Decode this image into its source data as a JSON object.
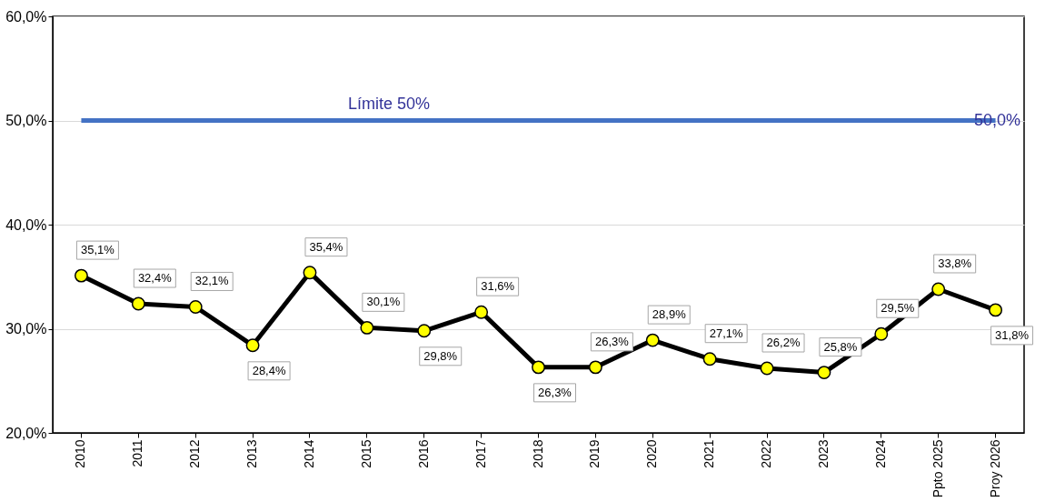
{
  "chart_data": {
    "type": "line",
    "categories": [
      "2010",
      "2011",
      "2012",
      "2013",
      "2014",
      "2015",
      "2016",
      "2017",
      "2018",
      "2019",
      "2020",
      "2021",
      "2022",
      "2023",
      "2024",
      "Ppto 2025",
      "Proy 2026"
    ],
    "series": [
      {
        "color": "#000000",
        "values": [
          35.1,
          32.4,
          32.1,
          28.4,
          35.4,
          30.1,
          29.8,
          31.6,
          26.3,
          26.3,
          28.9,
          27.1,
          26.2,
          25.8,
          29.5,
          33.8,
          31.8
        ],
        "value_labels": [
          "35,1%",
          "32,4%",
          "32,1%",
          "28,4%",
          "35,4%",
          "30,1%",
          "29,8%",
          "31,6%",
          "26,3%",
          "26,3%",
          "28,9%",
          "27,1%",
          "26,2%",
          "25,8%",
          "29,5%",
          "33,8%",
          "31,8%"
        ]
      }
    ],
    "ylim": [
      20,
      60
    ],
    "yticks": [
      {
        "value": 20,
        "label": "20,0%"
      },
      {
        "value": 30,
        "label": "30,0%"
      },
      {
        "value": 40,
        "label": "40,0%"
      },
      {
        "value": 50,
        "label": "50,0%"
      },
      {
        "value": 60,
        "label": "60,0%"
      }
    ],
    "ref_lines": [
      {
        "axis": "y",
        "value": 50,
        "label": "Límite 50%",
        "color": "#4472c4"
      }
    ],
    "annotations": [
      {
        "text": "50,0%",
        "x": "Proy 2026",
        "y": 50
      }
    ],
    "grid": "y",
    "marker": "circle",
    "line_style": "solid"
  }
}
